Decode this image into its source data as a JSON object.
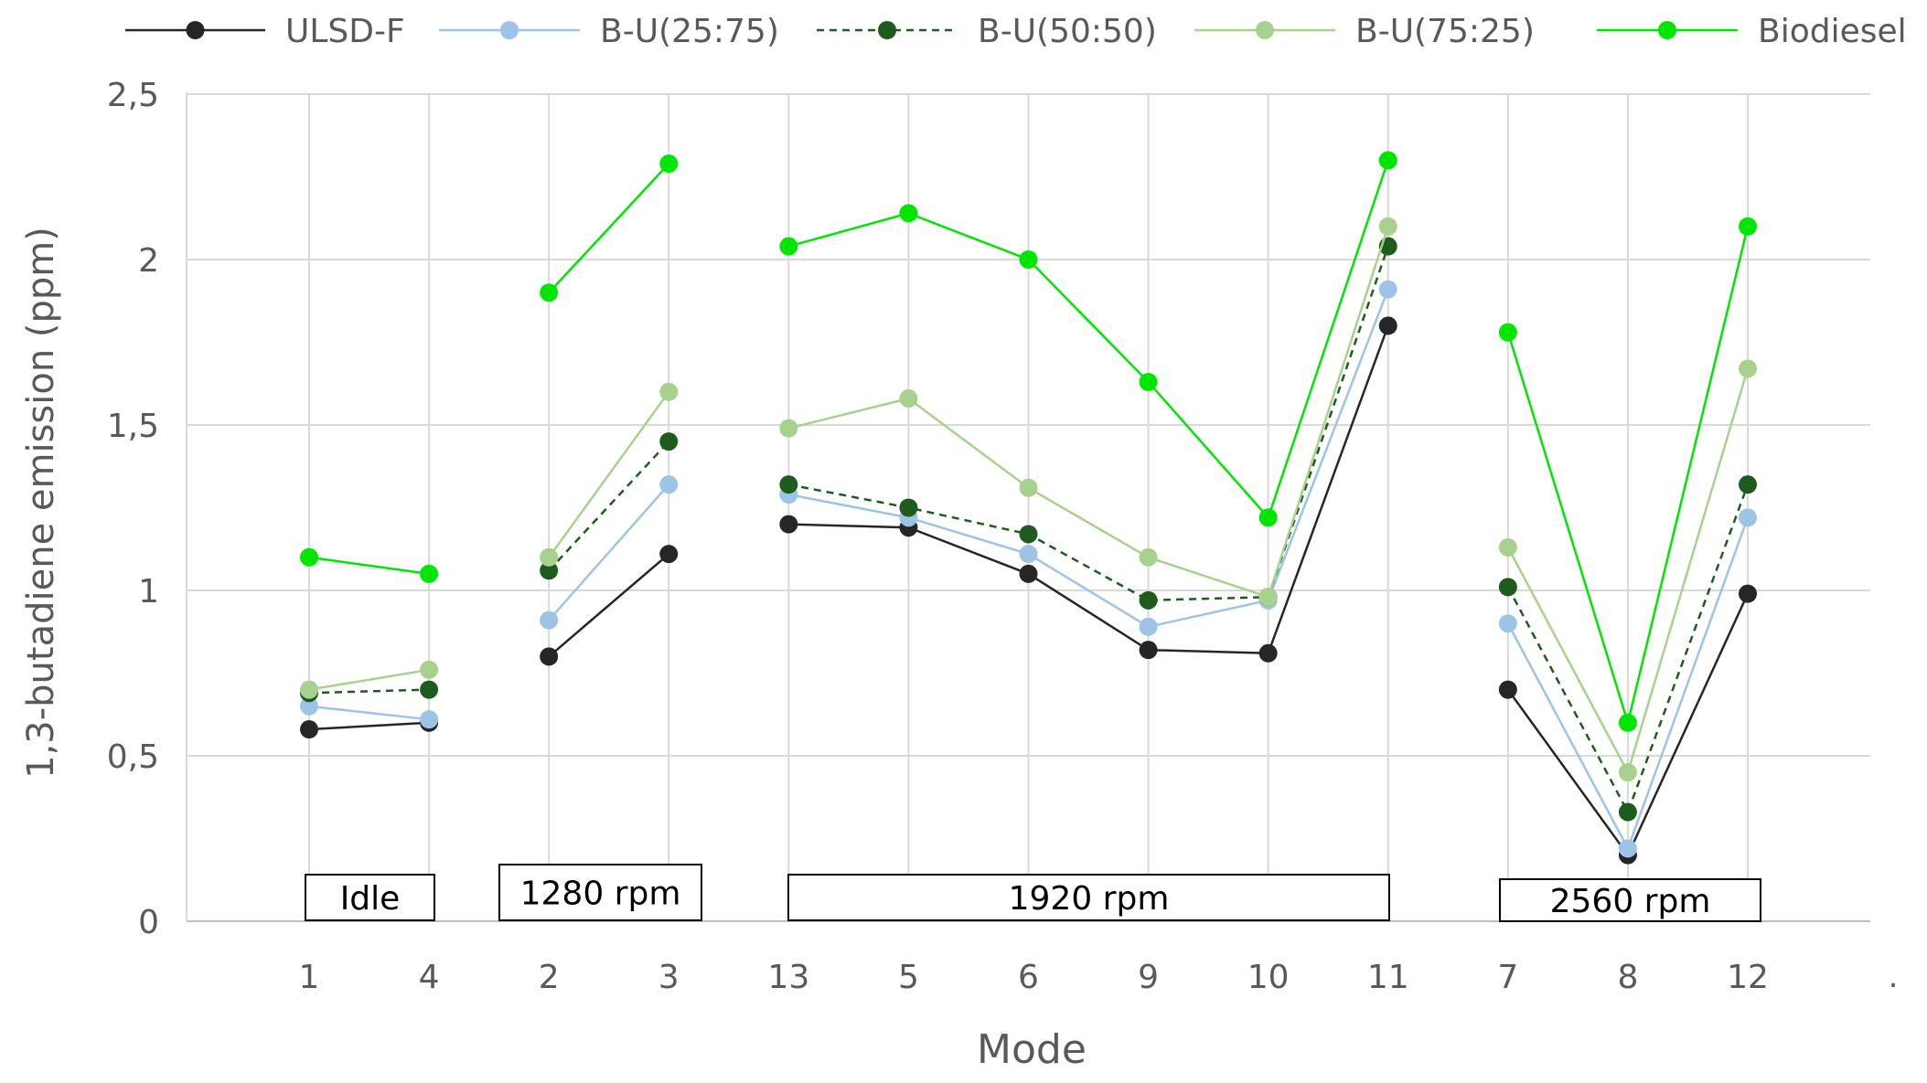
{
  "chart_data": {
    "type": "line",
    "title": "",
    "xlabel": "Mode",
    "ylabel": "1,3-butadiene emission (ppm)",
    "ylim": [
      0,
      2.5
    ],
    "yticks": [
      0,
      0.5,
      1,
      1.5,
      2,
      2.5
    ],
    "ytick_labels": [
      "0",
      "0,5",
      "1",
      "1,5",
      "2",
      "2,5"
    ],
    "grid": true,
    "legend_position": "top",
    "categories": [
      "1",
      "4",
      "2",
      "3",
      "13",
      "5",
      "6",
      "9",
      "10",
      "11",
      "7",
      "8",
      "12"
    ],
    "segments": [
      [
        0,
        1
      ],
      [
        2,
        3
      ],
      [
        4,
        9
      ],
      [
        10,
        12
      ]
    ],
    "groups": [
      {
        "label": "Idle",
        "start": 0,
        "end": 1
      },
      {
        "label": "1280 rpm",
        "start": 2,
        "end": 3
      },
      {
        "label": "1920 rpm",
        "start": 4,
        "end": 9
      },
      {
        "label": "2560 rpm",
        "start": 10,
        "end": 12
      }
    ],
    "trailing_mark": ".",
    "series": [
      {
        "name": "ULSD-F",
        "color": "#262626",
        "dashed": false,
        "values": [
          0.58,
          0.6,
          0.8,
          1.11,
          1.2,
          1.19,
          1.05,
          0.82,
          0.81,
          1.8,
          0.7,
          0.2,
          0.99
        ]
      },
      {
        "name": "B-U(25:75)",
        "color": "#9DC3E6",
        "dashed": false,
        "values": [
          0.65,
          0.61,
          0.91,
          1.32,
          1.29,
          1.22,
          1.11,
          0.89,
          0.97,
          1.91,
          0.9,
          0.22,
          1.22
        ]
      },
      {
        "name": "B-U(50:50)",
        "color": "#1E5C1E",
        "dashed": true,
        "values": [
          0.69,
          0.7,
          1.06,
          1.45,
          1.32,
          1.25,
          1.17,
          0.97,
          0.98,
          2.04,
          1.01,
          0.33,
          1.32
        ]
      },
      {
        "name": "B-U(75:25)",
        "color": "#A9D18E",
        "dashed": false,
        "values": [
          0.7,
          0.76,
          1.1,
          1.6,
          1.49,
          1.58,
          1.31,
          1.1,
          0.98,
          2.1,
          1.13,
          0.45,
          1.67
        ]
      },
      {
        "name": "Biodiesel",
        "color": "#00E600",
        "dashed": false,
        "values": [
          1.1,
          1.05,
          1.9,
          2.29,
          2.04,
          2.14,
          2.0,
          1.63,
          1.22,
          2.3,
          1.78,
          0.6,
          2.1
        ]
      }
    ]
  }
}
